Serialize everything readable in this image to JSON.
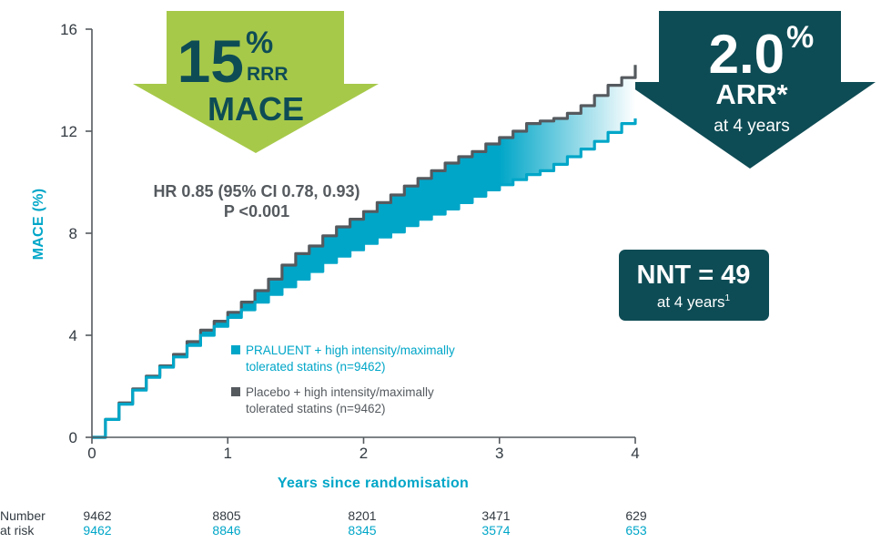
{
  "chart_data": {
    "type": "line",
    "xlabel": "Years since randomisation",
    "ylabel": "MACE (%)",
    "xlim": [
      0,
      4
    ],
    "ylim": [
      0,
      16
    ],
    "x_ticks": [
      "0",
      "1",
      "2",
      "3",
      "4"
    ],
    "y_ticks": [
      "0",
      "4",
      "8",
      "12",
      "16"
    ],
    "grid": false,
    "legend_position": "center",
    "series": [
      {
        "name": "PRALUENT + high intensity/maximally tolerated statins (n=9462)",
        "color": "#00a6c8",
        "x": [
          0,
          0.1,
          0.2,
          0.3,
          0.4,
          0.5,
          0.6,
          0.7,
          0.8,
          0.9,
          1.0,
          1.1,
          1.2,
          1.3,
          1.4,
          1.5,
          1.6,
          1.7,
          1.8,
          1.9,
          2.0,
          2.1,
          2.2,
          2.3,
          2.4,
          2.5,
          2.6,
          2.7,
          2.8,
          2.9,
          3.0,
          3.1,
          3.2,
          3.3,
          3.4,
          3.5,
          3.6,
          3.7,
          3.8,
          3.9,
          4.0
        ],
        "values": [
          0,
          0.7,
          1.3,
          1.85,
          2.35,
          2.75,
          3.15,
          3.6,
          4.0,
          4.35,
          4.7,
          5.0,
          5.3,
          5.6,
          5.9,
          6.2,
          6.5,
          6.85,
          7.1,
          7.35,
          7.6,
          7.85,
          8.05,
          8.3,
          8.55,
          8.75,
          8.95,
          9.2,
          9.45,
          9.7,
          9.9,
          10.1,
          10.3,
          10.45,
          10.7,
          11.0,
          11.3,
          11.6,
          11.95,
          12.3,
          12.5
        ]
      },
      {
        "name": "Placebo + high intensity/maximally tolerated statins (n=9462)",
        "color": "#555a5f",
        "x": [
          0,
          0.1,
          0.2,
          0.3,
          0.4,
          0.5,
          0.6,
          0.7,
          0.8,
          0.9,
          1.0,
          1.1,
          1.2,
          1.3,
          1.4,
          1.5,
          1.6,
          1.7,
          1.8,
          1.9,
          2.0,
          2.1,
          2.2,
          2.3,
          2.4,
          2.5,
          2.6,
          2.7,
          2.8,
          2.9,
          3.0,
          3.1,
          3.2,
          3.3,
          3.4,
          3.5,
          3.6,
          3.7,
          3.8,
          3.9,
          4.0
        ],
        "values": [
          0,
          0.7,
          1.35,
          1.9,
          2.4,
          2.8,
          3.25,
          3.75,
          4.2,
          4.55,
          4.9,
          5.3,
          5.75,
          6.2,
          6.75,
          7.2,
          7.5,
          7.9,
          8.25,
          8.55,
          8.85,
          9.2,
          9.5,
          9.85,
          10.15,
          10.45,
          10.75,
          11.0,
          11.2,
          11.5,
          11.75,
          12.0,
          12.3,
          12.4,
          12.5,
          12.7,
          13.0,
          13.4,
          13.8,
          14.1,
          14.6
        ]
      }
    ]
  },
  "badges": {
    "mace": {
      "big": "15",
      "pct": "%",
      "rrr": "RRR",
      "label": "MACE",
      "color": "#a7c94a"
    },
    "arr": {
      "big": "2.0",
      "pct": "%",
      "label": "ARR*",
      "sub": "at 4 years",
      "color": "#0e4c55"
    },
    "nnt": {
      "title": "NNT = 49",
      "sub": "at 4 years",
      "sup": "1",
      "color": "#0e4c55"
    }
  },
  "stats": {
    "hr": "HR 0.85 (95% CI 0.78, 0.93)",
    "p": "P <0.001"
  },
  "legend": [
    {
      "line1": "PRALUENT + high intensity/maximally",
      "line2": "tolerated statins (n=9462)",
      "color": "#00a6c8"
    },
    {
      "line1": "Placebo + high intensity/maximally",
      "line2": "tolerated statins (n=9462)",
      "color": "#555a5f"
    }
  ],
  "risk_table": {
    "label1": "Number",
    "label2": "at risk",
    "placebo": [
      "9462",
      "8805",
      "8201",
      "3471",
      "629"
    ],
    "praluent": [
      "9462",
      "8846",
      "8345",
      "3574",
      "653"
    ],
    "placebo_color": "#333b42",
    "praluent_color": "#00a6c8"
  }
}
